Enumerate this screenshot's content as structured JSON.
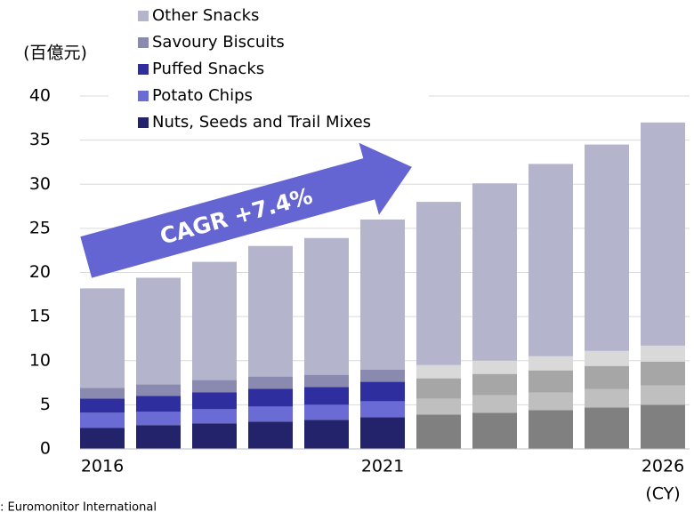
{
  "chart_data": {
    "type": "stacked_bar",
    "y_axis_label": "(百億元)",
    "x_axis_label": "(CY)",
    "source": ": Euromonitor International",
    "annotation": "CAGR +7.4%",
    "categories": [
      "2016",
      null,
      null,
      null,
      null,
      "2021",
      null,
      null,
      null,
      null,
      "2026"
    ],
    "series": [
      {
        "name": "Nuts, Seeds and Trail Mixes",
        "color": "#23236b",
        "colors": [
          "#23236b",
          "#23236b",
          "#23236b",
          "#23236b",
          "#23236b",
          "#23236b",
          "#808080",
          "#808080",
          "#808080",
          "#808080",
          "#808080"
        ],
        "values": [
          2.4,
          2.7,
          2.9,
          3.1,
          3.3,
          3.6,
          3.9,
          4.1,
          4.4,
          4.7,
          5.0
        ]
      },
      {
        "name": "Potato Chips",
        "color": "#6b6bd6",
        "colors": [
          "#6b6bd6",
          "#6b6bd6",
          "#6b6bd6",
          "#6b6bd6",
          "#6b6bd6",
          "#6b6bd6",
          "#bfbfbf",
          "#bfbfbf",
          "#bfbfbf",
          "#bfbfbf",
          "#bfbfbf"
        ],
        "values": [
          1.7,
          1.5,
          1.6,
          1.7,
          1.7,
          1.8,
          1.8,
          2.0,
          2.0,
          2.1,
          2.2
        ]
      },
      {
        "name": "Puffed Snacks",
        "color": "#2e2e9e",
        "colors": [
          "#2e2e9e",
          "#2e2e9e",
          "#2e2e9e",
          "#2e2e9e",
          "#2e2e9e",
          "#2e2e9e",
          "#a6a6a6",
          "#a6a6a6",
          "#a6a6a6",
          "#a6a6a6",
          "#a6a6a6"
        ],
        "values": [
          1.6,
          1.8,
          1.9,
          2.0,
          2.0,
          2.2,
          2.3,
          2.4,
          2.5,
          2.6,
          2.7
        ]
      },
      {
        "name": "Savoury Biscuits",
        "color": "#8a8ab0",
        "colors": [
          "#8a8ab0",
          "#8a8ab0",
          "#8a8ab0",
          "#8a8ab0",
          "#8a8ab0",
          "#8a8ab0",
          "#d9d9d9",
          "#d9d9d9",
          "#d9d9d9",
          "#d9d9d9",
          "#d9d9d9"
        ],
        "values": [
          1.2,
          1.3,
          1.4,
          1.4,
          1.4,
          1.4,
          1.5,
          1.5,
          1.6,
          1.7,
          1.8
        ]
      },
      {
        "name": "Other Snacks",
        "color": "#b4b4cc",
        "colors": [
          "#b4b4cc",
          "#b4b4cc",
          "#b4b4cc",
          "#b4b4cc",
          "#b4b4cc",
          "#b4b4cc",
          "#b4b4cc",
          "#b4b4cc",
          "#b4b4cc",
          "#b4b4cc",
          "#b4b4cc"
        ],
        "values": [
          11.3,
          12.1,
          13.4,
          14.8,
          15.5,
          17.0,
          18.5,
          20.1,
          21.8,
          23.4,
          25.3
        ]
      }
    ],
    "ylim": [
      0,
      40
    ],
    "yticks": [
      0,
      5,
      10,
      15,
      20,
      25,
      30,
      35,
      40
    ],
    "grid": true
  }
}
